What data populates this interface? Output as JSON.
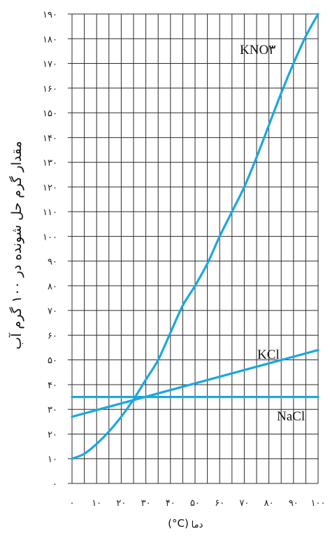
{
  "chart_data": {
    "type": "line",
    "xlabel": "دما",
    "xunit": "(°C)",
    "ylabel": "مقدار گرم حل شونده در ۱۰۰ گرم آب",
    "xlim": [
      0,
      100
    ],
    "ylim": [
      0,
      190
    ],
    "grid": true,
    "x_ticks": [
      0,
      10,
      20,
      30,
      40,
      50,
      60,
      70,
      80,
      90,
      100
    ],
    "x_tick_labels": [
      "۰",
      "۱۰",
      "۲۰",
      "۳۰",
      "۴۰",
      "۵۰",
      "۶۰",
      "۷۰",
      "۸۰",
      "۹۰",
      "۱۰۰"
    ],
    "y_ticks": [
      0,
      10,
      20,
      30,
      40,
      50,
      60,
      70,
      80,
      90,
      100,
      110,
      120,
      130,
      140,
      150,
      160,
      170,
      180,
      190
    ],
    "y_tick_labels": [
      "۰",
      "۱۰",
      "۲۰",
      "۳۰",
      "۴۰",
      "۵۰",
      "۶۰",
      "۷۰",
      "۸۰",
      "۹۰",
      "۱۰۰",
      "۱۱۰",
      "۱۲۰",
      "۱۳۰",
      "۱۴۰",
      "۱۵۰",
      "۱۶۰",
      "۱۷۰",
      "۱۸۰",
      "۱۹۰"
    ],
    "series": [
      {
        "name": "KNO۳",
        "color": "#1aa7e0",
        "x": [
          0,
          5,
          10,
          15,
          20,
          25,
          30,
          35,
          40,
          45,
          50,
          55,
          60,
          65,
          70,
          75,
          80,
          85,
          90,
          95,
          100
        ],
        "y": [
          10,
          12,
          16,
          21,
          27,
          34,
          42,
          50,
          61,
          72,
          80,
          89,
          100,
          110,
          120,
          132,
          145,
          158,
          170,
          181,
          190
        ]
      },
      {
        "name": "KCl",
        "color": "#1aa7e0",
        "x": [
          0,
          100
        ],
        "y": [
          27,
          54
        ]
      },
      {
        "name": "NaCl",
        "color": "#1aa7e0",
        "x": [
          0,
          100
        ],
        "y": [
          35,
          35
        ]
      }
    ]
  }
}
